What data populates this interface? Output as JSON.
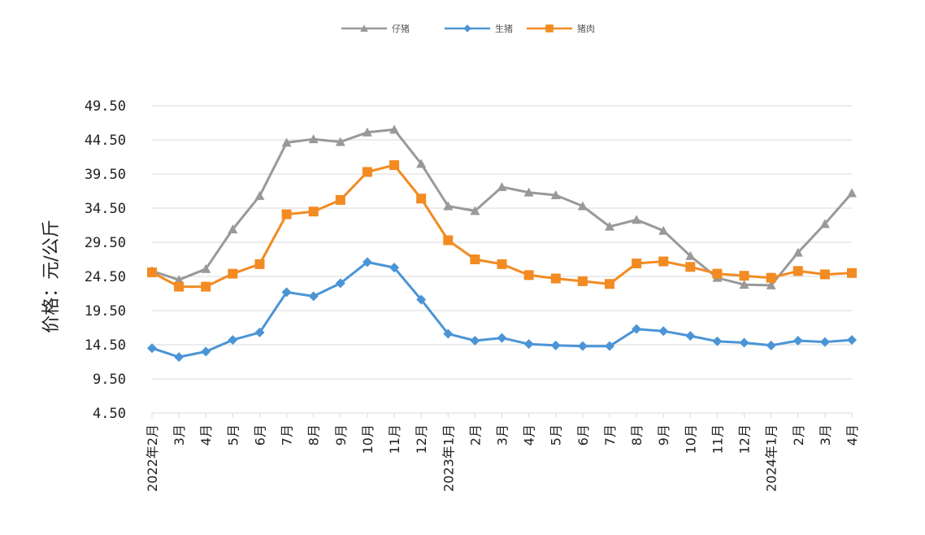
{
  "chart_data": {
    "type": "line",
    "ylabel": "价格：元/公斤",
    "ylim": [
      4.5,
      49.5
    ],
    "yticks": [
      "4.50",
      "9.50",
      "14.50",
      "19.50",
      "24.50",
      "29.50",
      "34.50",
      "39.50",
      "44.50",
      "49.50"
    ],
    "categories": [
      "2022年2月",
      "3月",
      "4月",
      "5月",
      "6月",
      "7月",
      "8月",
      "9月",
      "10月",
      "11月",
      "12月",
      "2023年1月",
      "2月",
      "3月",
      "4月",
      "5月",
      "6月",
      "7月",
      "8月",
      "9月",
      "10月",
      "11月",
      "12月",
      "2024年1月",
      "2月",
      "3月",
      "4月"
    ],
    "legend_position": "top-center",
    "grid": "horizontal",
    "series": [
      {
        "name": "仔猪",
        "color": "#999999",
        "marker": "triangle",
        "values": [
          25.3,
          24.0,
          25.6,
          31.4,
          36.3,
          44.1,
          44.6,
          44.2,
          45.6,
          46.0,
          41.0,
          34.8,
          34.1,
          37.6,
          36.8,
          36.4,
          34.8,
          31.8,
          32.8,
          31.2,
          27.5,
          24.3,
          23.3,
          23.2,
          28.0,
          32.2,
          36.7
        ]
      },
      {
        "name": "生猪",
        "color": "#4b95d6",
        "marker": "diamond",
        "values": [
          14.0,
          12.7,
          13.5,
          15.2,
          16.3,
          22.2,
          21.6,
          23.5,
          26.6,
          25.8,
          21.1,
          16.1,
          15.1,
          15.5,
          14.6,
          14.4,
          14.3,
          14.3,
          16.8,
          16.5,
          15.8,
          15.0,
          14.8,
          14.4,
          15.1,
          14.9,
          15.2
        ]
      },
      {
        "name": "猪肉",
        "color": "#f28b22",
        "marker": "square",
        "values": [
          25.1,
          23.0,
          23.0,
          24.9,
          26.3,
          33.6,
          34.0,
          35.7,
          39.8,
          40.8,
          35.9,
          29.8,
          27.0,
          26.3,
          24.7,
          24.2,
          23.8,
          23.4,
          26.4,
          26.7,
          25.9,
          24.9,
          24.6,
          24.3,
          25.3,
          24.8,
          25.0
        ]
      }
    ]
  }
}
